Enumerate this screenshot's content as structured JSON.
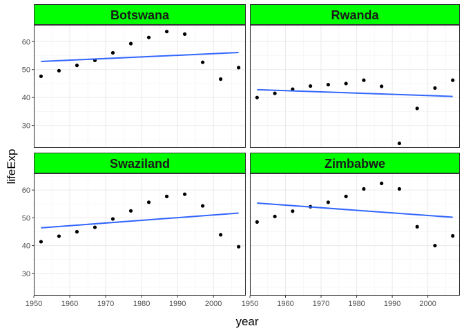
{
  "chart_data": {
    "type": "scatter",
    "xlabel": "year",
    "ylabel": "lifeExp",
    "xlim": [
      1950,
      2009
    ],
    "ylim": [
      22,
      66
    ],
    "x_ticks": [
      1950,
      1960,
      1970,
      1980,
      1990,
      2000
    ],
    "y_ticks": [
      30,
      40,
      50,
      60
    ],
    "strip_color": "#00ff00",
    "point_color": "#000000",
    "trend_color": "#3366ff",
    "grid": true,
    "panels": [
      {
        "name": "Botswana",
        "x": [
          1952,
          1957,
          1962,
          1967,
          1972,
          1977,
          1982,
          1987,
          1992,
          1997,
          2002,
          2007
        ],
        "y": [
          47.6,
          49.6,
          51.5,
          53.3,
          56.0,
          59.3,
          61.5,
          63.6,
          62.7,
          52.6,
          46.6,
          50.7
        ],
        "trend": [
          [
            1952,
            52.9
          ],
          [
            2007,
            56.1
          ]
        ]
      },
      {
        "name": "Rwanda",
        "x": [
          1952,
          1957,
          1962,
          1967,
          1972,
          1977,
          1982,
          1987,
          1992,
          1997,
          2002,
          2007
        ],
        "y": [
          40.0,
          41.5,
          43.0,
          44.1,
          44.6,
          45.0,
          46.2,
          44.0,
          23.6,
          36.1,
          43.4,
          46.2
        ],
        "trend": [
          [
            1952,
            42.8
          ],
          [
            2007,
            40.4
          ]
        ]
      },
      {
        "name": "Swaziland",
        "x": [
          1952,
          1957,
          1962,
          1967,
          1972,
          1977,
          1982,
          1987,
          1992,
          1997,
          2002,
          2007
        ],
        "y": [
          41.4,
          43.4,
          45.0,
          46.6,
          49.6,
          52.5,
          55.6,
          57.7,
          58.5,
          54.3,
          43.9,
          39.6
        ],
        "trend": [
          [
            1952,
            46.4
          ],
          [
            2007,
            51.7
          ]
        ]
      },
      {
        "name": "Zimbabwe",
        "x": [
          1952,
          1957,
          1962,
          1967,
          1972,
          1977,
          1982,
          1987,
          1992,
          1997,
          2002,
          2007
        ],
        "y": [
          48.5,
          50.5,
          52.4,
          54.0,
          55.6,
          57.7,
          60.4,
          62.4,
          60.4,
          46.8,
          40.0,
          43.5
        ],
        "trend": [
          [
            1952,
            55.3
          ],
          [
            2007,
            50.2
          ]
        ]
      }
    ]
  }
}
